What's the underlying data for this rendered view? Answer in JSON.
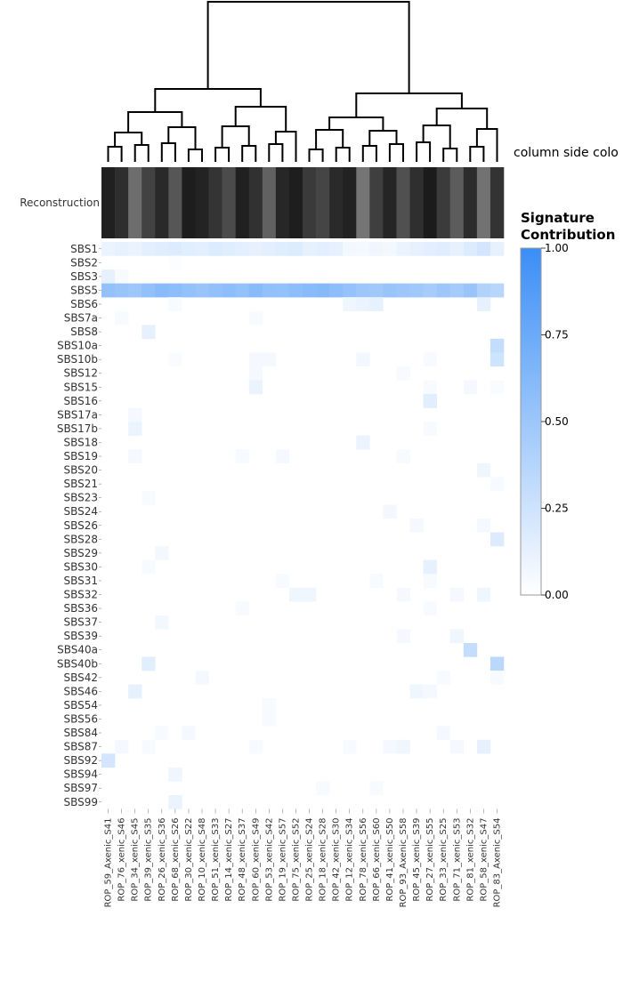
{
  "chart_data": {
    "type": "heatmap",
    "side_row_label": "Reconstruction",
    "column_side_label": "column side colo",
    "colorbar": {
      "title_line1": "Signature",
      "title_line2": "Contribution",
      "ticks": [
        "1.00",
        "0.75",
        "0.50",
        "0.25",
        "0.00"
      ],
      "range": [
        0,
        1
      ],
      "color_low": "#ffffff",
      "color_high": "#3a8ef6"
    },
    "rows": [
      "SBS1",
      "SBS2",
      "SBS3",
      "SBS5",
      "SBS6",
      "SBS7a",
      "SBS8",
      "SBS10a",
      "SBS10b",
      "SBS12",
      "SBS15",
      "SBS16",
      "SBS17a",
      "SBS17b",
      "SBS18",
      "SBS19",
      "SBS20",
      "SBS21",
      "SBS23",
      "SBS24",
      "SBS26",
      "SBS28",
      "SBS29",
      "SBS30",
      "SBS31",
      "SBS32",
      "SBS36",
      "SBS37",
      "SBS39",
      "SBS40a",
      "SBS40b",
      "SBS42",
      "SBS46",
      "SBS54",
      "SBS56",
      "SBS84",
      "SBS87",
      "SBS92",
      "SBS94",
      "SBS97",
      "SBS99"
    ],
    "columns": [
      "ROP_59_Axenic_S41",
      "ROP_76_xenic_S46",
      "ROP_34_xenic_S45",
      "ROP_39_xenic_S35",
      "ROP_26_xenic_S36",
      "ROP_68_xenic_S26",
      "ROP_30_xenic_S22",
      "ROP_10_xenic_S48",
      "ROP_51_xenic_S33",
      "ROP_14_xenic_S27",
      "ROP_48_xenic_S37",
      "ROP_60_xenic_S49",
      "ROP_53_xenic_S42",
      "ROP_19_xenic_S57",
      "ROP_75_xenic_S52",
      "ROP_25_xenic_S24",
      "ROP_18_xenic_S28",
      "ROP_42_xenic_S30",
      "ROP_12_xenic_S34",
      "ROP_78_xenic_S56",
      "ROP_66_xenic_S60",
      "ROP_41_xenic_S50",
      "ROP_93_Axenic_S58",
      "ROP_45_xenic_S39",
      "ROP_27_xenic_S55",
      "ROP_33_xenic_S25",
      "ROP_71_xenic_S53",
      "ROP_81_xenic_S32",
      "ROP_58_xenic_S47",
      "ROP_83_Axenic_S54"
    ],
    "reconstruction": [
      0.1,
      0.18,
      0.55,
      0.3,
      0.15,
      0.42,
      0.08,
      0.12,
      0.22,
      0.35,
      0.1,
      0.2,
      0.48,
      0.14,
      0.09,
      0.25,
      0.32,
      0.16,
      0.11,
      0.6,
      0.28,
      0.13,
      0.38,
      0.19,
      0.07,
      0.26,
      0.45,
      0.17,
      0.58,
      0.21
    ],
    "values": [
      [
        0.1,
        0.12,
        0.1,
        0.14,
        0.16,
        0.18,
        0.15,
        0.14,
        0.18,
        0.16,
        0.14,
        0.12,
        0.14,
        0.16,
        0.18,
        0.12,
        0.14,
        0.12,
        0.06,
        0.05,
        0.08,
        0.06,
        0.1,
        0.12,
        0.14,
        0.16,
        0.12,
        0.18,
        0.22,
        0.12
      ],
      [
        0.0,
        0.0,
        0.0,
        0.0,
        0.0,
        0.02,
        0.0,
        0.0,
        0.0,
        0.0,
        0.0,
        0.0,
        0.0,
        0.0,
        0.0,
        0.0,
        0.0,
        0.0,
        0.0,
        0.0,
        0.0,
        0.0,
        0.0,
        0.0,
        0.0,
        0.0,
        0.0,
        0.0,
        0.0,
        0.0
      ],
      [
        0.12,
        0.04,
        0.0,
        0.0,
        0.0,
        0.0,
        0.0,
        0.0,
        0.0,
        0.0,
        0.0,
        0.0,
        0.0,
        0.0,
        0.0,
        0.0,
        0.0,
        0.0,
        0.0,
        0.0,
        0.0,
        0.0,
        0.0,
        0.0,
        0.0,
        0.0,
        0.0,
        0.0,
        0.0,
        0.0
      ],
      [
        0.55,
        0.52,
        0.5,
        0.56,
        0.6,
        0.58,
        0.55,
        0.52,
        0.56,
        0.58,
        0.55,
        0.6,
        0.56,
        0.55,
        0.58,
        0.6,
        0.62,
        0.58,
        0.54,
        0.5,
        0.48,
        0.52,
        0.5,
        0.48,
        0.45,
        0.5,
        0.46,
        0.52,
        0.4,
        0.36
      ],
      [
        0.0,
        0.0,
        0.0,
        0.0,
        0.0,
        0.04,
        0.0,
        0.0,
        0.0,
        0.0,
        0.0,
        0.0,
        0.0,
        0.0,
        0.0,
        0.0,
        0.0,
        0.0,
        0.08,
        0.1,
        0.12,
        0.0,
        0.0,
        0.0,
        0.0,
        0.0,
        0.0,
        0.0,
        0.12,
        0.0
      ],
      [
        0.0,
        0.04,
        0.0,
        0.0,
        0.0,
        0.0,
        0.0,
        0.0,
        0.0,
        0.0,
        0.0,
        0.04,
        0.0,
        0.0,
        0.0,
        0.0,
        0.0,
        0.0,
        0.0,
        0.0,
        0.0,
        0.0,
        0.0,
        0.0,
        0.0,
        0.0,
        0.0,
        0.0,
        0.0,
        0.0
      ],
      [
        0.0,
        0.0,
        0.0,
        0.12,
        0.0,
        0.0,
        0.0,
        0.0,
        0.0,
        0.0,
        0.0,
        0.0,
        0.0,
        0.0,
        0.0,
        0.0,
        0.0,
        0.0,
        0.0,
        0.0,
        0.0,
        0.0,
        0.0,
        0.0,
        0.0,
        0.0,
        0.0,
        0.0,
        0.0,
        0.0
      ],
      [
        0.0,
        0.0,
        0.0,
        0.0,
        0.0,
        0.0,
        0.0,
        0.0,
        0.0,
        0.0,
        0.0,
        0.0,
        0.0,
        0.0,
        0.0,
        0.0,
        0.0,
        0.0,
        0.0,
        0.0,
        0.0,
        0.0,
        0.0,
        0.0,
        0.0,
        0.0,
        0.0,
        0.0,
        0.0,
        0.3
      ],
      [
        0.0,
        0.0,
        0.0,
        0.0,
        0.0,
        0.03,
        0.0,
        0.0,
        0.0,
        0.0,
        0.0,
        0.05,
        0.05,
        0.0,
        0.0,
        0.0,
        0.0,
        0.0,
        0.0,
        0.06,
        0.0,
        0.0,
        0.0,
        0.0,
        0.04,
        0.0,
        0.0,
        0.0,
        0.0,
        0.25
      ],
      [
        0.0,
        0.0,
        0.0,
        0.0,
        0.0,
        0.0,
        0.0,
        0.0,
        0.0,
        0.0,
        0.0,
        0.05,
        0.0,
        0.0,
        0.0,
        0.0,
        0.0,
        0.0,
        0.0,
        0.0,
        0.0,
        0.0,
        0.04,
        0.0,
        0.0,
        0.0,
        0.0,
        0.0,
        0.0,
        0.0
      ],
      [
        0.0,
        0.0,
        0.0,
        0.0,
        0.0,
        0.0,
        0.0,
        0.0,
        0.0,
        0.0,
        0.0,
        0.1,
        0.0,
        0.0,
        0.0,
        0.0,
        0.0,
        0.0,
        0.0,
        0.0,
        0.0,
        0.0,
        0.0,
        0.0,
        0.04,
        0.0,
        0.0,
        0.05,
        0.0,
        0.03
      ],
      [
        0.0,
        0.0,
        0.0,
        0.0,
        0.0,
        0.0,
        0.0,
        0.0,
        0.0,
        0.0,
        0.0,
        0.0,
        0.0,
        0.0,
        0.0,
        0.0,
        0.0,
        0.0,
        0.0,
        0.0,
        0.0,
        0.0,
        0.0,
        0.0,
        0.15,
        0.0,
        0.0,
        0.0,
        0.0,
        0.0
      ],
      [
        0.0,
        0.0,
        0.05,
        0.0,
        0.0,
        0.0,
        0.0,
        0.0,
        0.0,
        0.0,
        0.0,
        0.0,
        0.0,
        0.0,
        0.0,
        0.0,
        0.0,
        0.0,
        0.0,
        0.0,
        0.0,
        0.0,
        0.0,
        0.0,
        0.0,
        0.0,
        0.0,
        0.0,
        0.0,
        0.0
      ],
      [
        0.0,
        0.0,
        0.1,
        0.0,
        0.0,
        0.0,
        0.0,
        0.0,
        0.0,
        0.0,
        0.0,
        0.0,
        0.0,
        0.0,
        0.0,
        0.0,
        0.0,
        0.0,
        0.0,
        0.0,
        0.0,
        0.0,
        0.0,
        0.0,
        0.04,
        0.0,
        0.0,
        0.0,
        0.0,
        0.0
      ],
      [
        0.0,
        0.0,
        0.0,
        0.0,
        0.0,
        0.0,
        0.0,
        0.0,
        0.0,
        0.0,
        0.0,
        0.0,
        0.0,
        0.0,
        0.0,
        0.0,
        0.0,
        0.0,
        0.0,
        0.1,
        0.0,
        0.0,
        0.0,
        0.0,
        0.0,
        0.0,
        0.0,
        0.0,
        0.0,
        0.0
      ],
      [
        0.0,
        0.0,
        0.05,
        0.0,
        0.0,
        0.0,
        0.0,
        0.0,
        0.0,
        0.0,
        0.04,
        0.0,
        0.0,
        0.05,
        0.0,
        0.0,
        0.0,
        0.0,
        0.0,
        0.0,
        0.0,
        0.0,
        0.04,
        0.0,
        0.0,
        0.0,
        0.0,
        0.0,
        0.0,
        0.0
      ],
      [
        0.0,
        0.0,
        0.0,
        0.0,
        0.0,
        0.0,
        0.0,
        0.0,
        0.0,
        0.0,
        0.0,
        0.0,
        0.0,
        0.0,
        0.0,
        0.0,
        0.0,
        0.0,
        0.0,
        0.0,
        0.0,
        0.0,
        0.0,
        0.0,
        0.0,
        0.0,
        0.0,
        0.0,
        0.08,
        0.0
      ],
      [
        0.0,
        0.0,
        0.0,
        0.0,
        0.0,
        0.0,
        0.0,
        0.0,
        0.0,
        0.0,
        0.0,
        0.0,
        0.0,
        0.0,
        0.0,
        0.0,
        0.0,
        0.0,
        0.0,
        0.0,
        0.0,
        0.0,
        0.0,
        0.0,
        0.0,
        0.0,
        0.0,
        0.0,
        0.0,
        0.04
      ],
      [
        0.0,
        0.0,
        0.0,
        0.04,
        0.0,
        0.0,
        0.0,
        0.0,
        0.0,
        0.0,
        0.0,
        0.0,
        0.0,
        0.0,
        0.0,
        0.0,
        0.0,
        0.0,
        0.0,
        0.0,
        0.0,
        0.0,
        0.0,
        0.0,
        0.0,
        0.0,
        0.0,
        0.0,
        0.0,
        0.0
      ],
      [
        0.0,
        0.0,
        0.0,
        0.0,
        0.0,
        0.0,
        0.0,
        0.0,
        0.0,
        0.0,
        0.0,
        0.0,
        0.0,
        0.0,
        0.0,
        0.0,
        0.0,
        0.0,
        0.0,
        0.0,
        0.0,
        0.06,
        0.0,
        0.0,
        0.0,
        0.0,
        0.0,
        0.0,
        0.0,
        0.0
      ],
      [
        0.0,
        0.0,
        0.0,
        0.0,
        0.0,
        0.0,
        0.0,
        0.0,
        0.0,
        0.0,
        0.0,
        0.0,
        0.0,
        0.0,
        0.0,
        0.0,
        0.0,
        0.0,
        0.0,
        0.0,
        0.0,
        0.0,
        0.0,
        0.05,
        0.0,
        0.0,
        0.0,
        0.0,
        0.05,
        0.0
      ],
      [
        0.0,
        0.0,
        0.0,
        0.0,
        0.0,
        0.0,
        0.0,
        0.0,
        0.0,
        0.0,
        0.0,
        0.0,
        0.0,
        0.0,
        0.0,
        0.0,
        0.0,
        0.0,
        0.0,
        0.0,
        0.0,
        0.0,
        0.0,
        0.0,
        0.0,
        0.0,
        0.0,
        0.0,
        0.0,
        0.18
      ],
      [
        0.0,
        0.0,
        0.0,
        0.0,
        0.06,
        0.0,
        0.0,
        0.0,
        0.0,
        0.0,
        0.0,
        0.0,
        0.0,
        0.0,
        0.0,
        0.0,
        0.0,
        0.0,
        0.0,
        0.0,
        0.0,
        0.0,
        0.0,
        0.0,
        0.0,
        0.0,
        0.0,
        0.0,
        0.0,
        0.0
      ],
      [
        0.0,
        0.0,
        0.0,
        0.04,
        0.0,
        0.0,
        0.0,
        0.0,
        0.0,
        0.0,
        0.0,
        0.0,
        0.0,
        0.0,
        0.0,
        0.0,
        0.0,
        0.0,
        0.0,
        0.0,
        0.0,
        0.0,
        0.0,
        0.0,
        0.12,
        0.0,
        0.0,
        0.0,
        0.0,
        0.0
      ],
      [
        0.0,
        0.0,
        0.0,
        0.0,
        0.0,
        0.0,
        0.0,
        0.0,
        0.0,
        0.0,
        0.0,
        0.0,
        0.0,
        0.04,
        0.0,
        0.0,
        0.0,
        0.0,
        0.0,
        0.0,
        0.04,
        0.0,
        0.0,
        0.0,
        0.04,
        0.0,
        0.0,
        0.0,
        0.0,
        0.0
      ],
      [
        0.0,
        0.0,
        0.0,
        0.0,
        0.0,
        0.0,
        0.0,
        0.0,
        0.0,
        0.0,
        0.0,
        0.0,
        0.0,
        0.0,
        0.08,
        0.08,
        0.0,
        0.0,
        0.0,
        0.0,
        0.0,
        0.0,
        0.05,
        0.0,
        0.0,
        0.0,
        0.05,
        0.0,
        0.08,
        0.0
      ],
      [
        0.0,
        0.0,
        0.0,
        0.0,
        0.0,
        0.0,
        0.0,
        0.0,
        0.0,
        0.0,
        0.04,
        0.0,
        0.0,
        0.0,
        0.0,
        0.0,
        0.0,
        0.0,
        0.0,
        0.0,
        0.0,
        0.0,
        0.0,
        0.0,
        0.04,
        0.0,
        0.0,
        0.0,
        0.0,
        0.0
      ],
      [
        0.0,
        0.0,
        0.0,
        0.0,
        0.06,
        0.0,
        0.0,
        0.0,
        0.0,
        0.0,
        0.0,
        0.0,
        0.0,
        0.0,
        0.0,
        0.0,
        0.0,
        0.0,
        0.0,
        0.0,
        0.0,
        0.0,
        0.0,
        0.0,
        0.0,
        0.0,
        0.0,
        0.0,
        0.0,
        0.0
      ],
      [
        0.0,
        0.0,
        0.0,
        0.0,
        0.0,
        0.0,
        0.0,
        0.0,
        0.0,
        0.0,
        0.0,
        0.0,
        0.0,
        0.0,
        0.0,
        0.0,
        0.0,
        0.0,
        0.0,
        0.0,
        0.0,
        0.0,
        0.05,
        0.0,
        0.0,
        0.0,
        0.08,
        0.0,
        0.0,
        0.0
      ],
      [
        0.0,
        0.0,
        0.0,
        0.0,
        0.0,
        0.0,
        0.0,
        0.0,
        0.0,
        0.0,
        0.0,
        0.0,
        0.0,
        0.0,
        0.0,
        0.0,
        0.0,
        0.0,
        0.0,
        0.0,
        0.0,
        0.0,
        0.0,
        0.0,
        0.0,
        0.0,
        0.0,
        0.3,
        0.0,
        0.0
      ],
      [
        0.0,
        0.0,
        0.0,
        0.15,
        0.0,
        0.0,
        0.0,
        0.0,
        0.0,
        0.0,
        0.0,
        0.0,
        0.0,
        0.0,
        0.0,
        0.0,
        0.0,
        0.0,
        0.0,
        0.0,
        0.0,
        0.0,
        0.0,
        0.0,
        0.0,
        0.0,
        0.0,
        0.0,
        0.0,
        0.35
      ],
      [
        0.0,
        0.0,
        0.0,
        0.0,
        0.0,
        0.0,
        0.0,
        0.05,
        0.0,
        0.0,
        0.0,
        0.0,
        0.0,
        0.0,
        0.0,
        0.0,
        0.0,
        0.0,
        0.0,
        0.0,
        0.0,
        0.0,
        0.0,
        0.0,
        0.0,
        0.04,
        0.0,
        0.0,
        0.0,
        0.04
      ],
      [
        0.0,
        0.0,
        0.12,
        0.0,
        0.0,
        0.0,
        0.0,
        0.0,
        0.0,
        0.0,
        0.0,
        0.0,
        0.0,
        0.0,
        0.0,
        0.0,
        0.0,
        0.0,
        0.0,
        0.0,
        0.0,
        0.0,
        0.0,
        0.08,
        0.05,
        0.0,
        0.0,
        0.0,
        0.0,
        0.0
      ],
      [
        0.0,
        0.0,
        0.0,
        0.0,
        0.0,
        0.0,
        0.0,
        0.0,
        0.0,
        0.0,
        0.0,
        0.0,
        0.04,
        0.0,
        0.0,
        0.0,
        0.0,
        0.0,
        0.0,
        0.0,
        0.0,
        0.0,
        0.0,
        0.0,
        0.0,
        0.0,
        0.0,
        0.0,
        0.0,
        0.0
      ],
      [
        0.0,
        0.0,
        0.0,
        0.0,
        0.0,
        0.0,
        0.0,
        0.0,
        0.0,
        0.0,
        0.0,
        0.0,
        0.04,
        0.0,
        0.0,
        0.0,
        0.0,
        0.0,
        0.0,
        0.0,
        0.0,
        0.0,
        0.0,
        0.0,
        0.0,
        0.0,
        0.0,
        0.0,
        0.0,
        0.0
      ],
      [
        0.0,
        0.0,
        0.0,
        0.0,
        0.04,
        0.0,
        0.05,
        0.0,
        0.0,
        0.0,
        0.0,
        0.0,
        0.0,
        0.0,
        0.0,
        0.0,
        0.0,
        0.0,
        0.0,
        0.0,
        0.0,
        0.0,
        0.0,
        0.0,
        0.0,
        0.05,
        0.0,
        0.0,
        0.0,
        0.0
      ],
      [
        0.0,
        0.05,
        0.0,
        0.04,
        0.0,
        0.0,
        0.0,
        0.0,
        0.0,
        0.0,
        0.0,
        0.04,
        0.0,
        0.0,
        0.0,
        0.0,
        0.0,
        0.0,
        0.04,
        0.0,
        0.0,
        0.05,
        0.08,
        0.0,
        0.0,
        0.0,
        0.05,
        0.0,
        0.12,
        0.0
      ],
      [
        0.22,
        0.0,
        0.0,
        0.0,
        0.0,
        0.0,
        0.0,
        0.0,
        0.0,
        0.0,
        0.0,
        0.0,
        0.0,
        0.0,
        0.0,
        0.0,
        0.0,
        0.0,
        0.0,
        0.0,
        0.0,
        0.0,
        0.0,
        0.0,
        0.0,
        0.0,
        0.0,
        0.0,
        0.0,
        0.0
      ],
      [
        0.0,
        0.0,
        0.0,
        0.0,
        0.0,
        0.08,
        0.0,
        0.0,
        0.0,
        0.0,
        0.0,
        0.0,
        0.0,
        0.0,
        0.0,
        0.0,
        0.0,
        0.0,
        0.0,
        0.0,
        0.0,
        0.0,
        0.0,
        0.0,
        0.0,
        0.0,
        0.0,
        0.0,
        0.0,
        0.0
      ],
      [
        0.0,
        0.0,
        0.0,
        0.0,
        0.0,
        0.0,
        0.0,
        0.0,
        0.0,
        0.0,
        0.0,
        0.0,
        0.0,
        0.0,
        0.0,
        0.0,
        0.04,
        0.0,
        0.0,
        0.0,
        0.04,
        0.0,
        0.0,
        0.0,
        0.0,
        0.0,
        0.0,
        0.0,
        0.0,
        0.0
      ],
      [
        0.0,
        0.0,
        0.0,
        0.0,
        0.0,
        0.1,
        0.0,
        0.0,
        0.0,
        0.0,
        0.0,
        0.0,
        0.0,
        0.0,
        0.0,
        0.0,
        0.0,
        0.0,
        0.0,
        0.0,
        0.0,
        0.0,
        0.0,
        0.0,
        0.0,
        0.0,
        0.0,
        0.0,
        0.0,
        0.0
      ]
    ]
  }
}
